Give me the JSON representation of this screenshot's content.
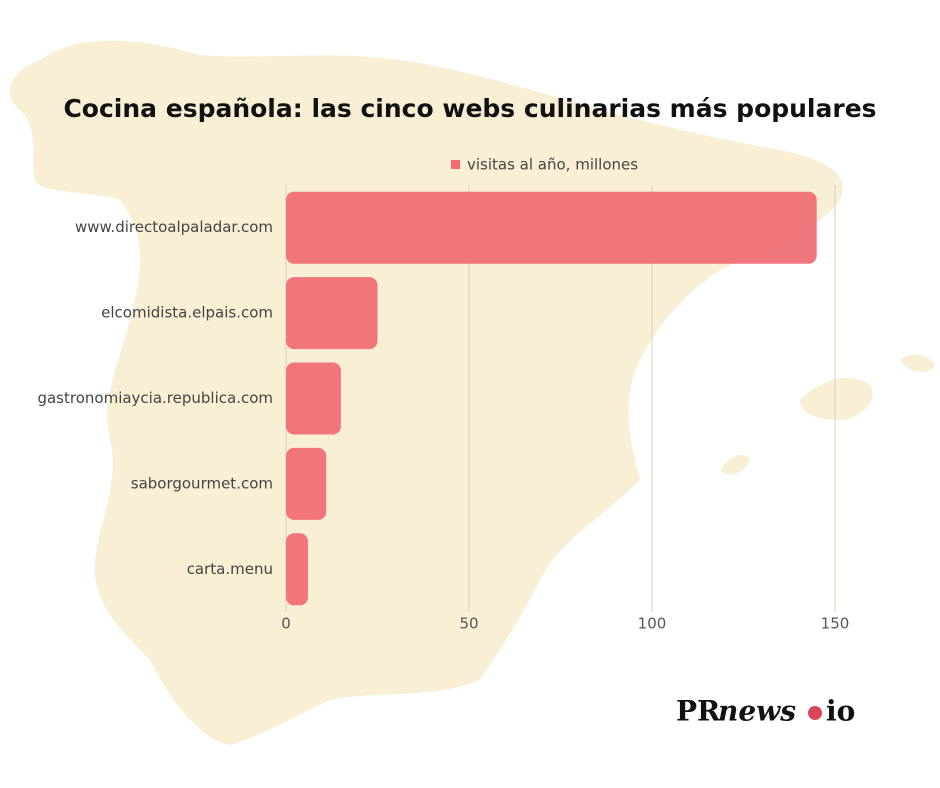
{
  "chart_data": {
    "type": "bar",
    "orientation": "horizontal",
    "title": "Cocina española: las cinco webs culinarias más populares",
    "categories": [
      "www.directoalpaladar.com",
      "elcomidista.elpais.com",
      "gastronomiaycia.republica.com",
      "saborgourmet.com",
      "carta.menu"
    ],
    "series": [
      {
        "name": "visitas al año, millones",
        "color": "#f06b73",
        "values": [
          145,
          25,
          15,
          11,
          6
        ]
      }
    ],
    "xlim": [
      0,
      150
    ],
    "xticks": [
      0,
      50,
      100,
      150
    ],
    "grid": true,
    "legend": "top"
  },
  "logo": {
    "part1": "PR",
    "part2": "news",
    "part3": "io"
  }
}
